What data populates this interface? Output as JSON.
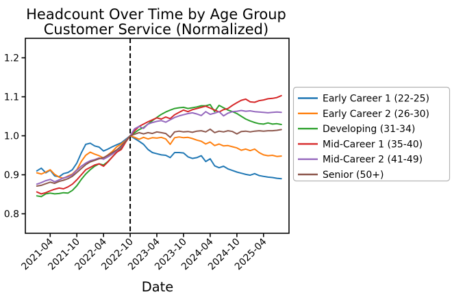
{
  "figure": {
    "title_line1": "Headcount Over Time by Age Group",
    "title_line2": "Customer Service (Normalized)"
  },
  "chart_data": {
    "type": "line",
    "title": "Headcount Over Time by Age Group",
    "subtitle": "Customer Service (Normalized)",
    "xlabel": "Date",
    "ylabel": "",
    "x_frequency": "monthly",
    "x_start": "2021-01",
    "x_end": "2025-08",
    "ylim": [
      0.75,
      1.25
    ],
    "grid": false,
    "legend_position": "outside-right",
    "background_color": "#ffffff",
    "axis_color": "#000000",
    "xtick_labels": [
      "2021-04",
      "2021-10",
      "2022-04",
      "2022-10",
      "2023-04",
      "2023-10",
      "2024-04",
      "2024-10",
      "2025-04"
    ],
    "xtick_month_indices": [
      3,
      9,
      15,
      21,
      27,
      33,
      39,
      45,
      51
    ],
    "ytick_labels": [
      "0.8",
      "0.9",
      "1.0",
      "1.1",
      "1.2"
    ],
    "ytick_values": [
      0.8,
      0.9,
      1.0,
      1.1,
      1.2
    ],
    "normalization_line": {
      "month_index": 21,
      "date": "2022-10",
      "style": "dashed",
      "color": "#000000"
    },
    "series": [
      {
        "name": "Early Career 1 (22-25)",
        "color": "#1f77b4",
        "values": [
          0.91,
          0.917,
          0.905,
          0.912,
          0.897,
          0.895,
          0.903,
          0.906,
          0.913,
          0.93,
          0.956,
          0.978,
          0.981,
          0.974,
          0.971,
          0.961,
          0.966,
          0.972,
          0.977,
          0.982,
          0.991,
          1.0,
          0.993,
          0.986,
          0.978,
          0.965,
          0.957,
          0.954,
          0.951,
          0.95,
          0.944,
          0.957,
          0.957,
          0.956,
          0.946,
          0.942,
          0.944,
          0.949,
          0.934,
          0.941,
          0.923,
          0.918,
          0.922,
          0.915,
          0.911,
          0.907,
          0.904,
          0.901,
          0.899,
          0.903,
          0.898,
          0.896,
          0.894,
          0.893,
          0.891,
          0.89
        ]
      },
      {
        "name": "Early Career 2 (26-30)",
        "color": "#ff7f0e",
        "values": [
          0.905,
          0.902,
          0.907,
          0.913,
          0.901,
          0.894,
          0.891,
          0.897,
          0.902,
          0.913,
          0.934,
          0.95,
          0.958,
          0.953,
          0.949,
          0.943,
          0.951,
          0.96,
          0.972,
          0.979,
          0.988,
          1.0,
          0.996,
          0.991,
          0.996,
          0.992,
          0.995,
          0.994,
          0.996,
          0.992,
          0.978,
          0.995,
          0.997,
          0.995,
          0.996,
          0.993,
          0.989,
          0.986,
          0.979,
          0.984,
          0.975,
          0.979,
          0.974,
          0.975,
          0.972,
          0.969,
          0.963,
          0.966,
          0.962,
          0.966,
          0.957,
          0.951,
          0.949,
          0.95,
          0.947,
          0.948
        ]
      },
      {
        "name": "Developing (31-34)",
        "color": "#2ca02c",
        "values": [
          0.846,
          0.844,
          0.851,
          0.853,
          0.851,
          0.852,
          0.854,
          0.853,
          0.86,
          0.872,
          0.888,
          0.902,
          0.913,
          0.922,
          0.928,
          0.925,
          0.934,
          0.946,
          0.958,
          0.968,
          0.985,
          1.0,
          1.008,
          1.016,
          1.021,
          1.03,
          1.039,
          1.047,
          1.055,
          1.061,
          1.066,
          1.07,
          1.072,
          1.073,
          1.07,
          1.072,
          1.074,
          1.077,
          1.077,
          1.08,
          1.062,
          1.078,
          1.072,
          1.066,
          1.062,
          1.057,
          1.05,
          1.043,
          1.038,
          1.034,
          1.031,
          1.03,
          1.033,
          1.03,
          1.031,
          1.029
        ]
      },
      {
        "name": "Mid-Career 1 (35-40)",
        "color": "#d62728",
        "values": [
          0.856,
          0.851,
          0.854,
          0.859,
          0.863,
          0.866,
          0.864,
          0.869,
          0.876,
          0.887,
          0.9,
          0.913,
          0.919,
          0.925,
          0.928,
          0.922,
          0.933,
          0.946,
          0.958,
          0.965,
          0.984,
          1.0,
          1.013,
          1.024,
          1.03,
          1.036,
          1.041,
          1.046,
          1.043,
          1.048,
          1.044,
          1.054,
          1.06,
          1.066,
          1.062,
          1.067,
          1.07,
          1.073,
          1.076,
          1.071,
          1.066,
          1.061,
          1.067,
          1.07,
          1.078,
          1.085,
          1.091,
          1.094,
          1.087,
          1.086,
          1.09,
          1.092,
          1.095,
          1.096,
          1.098,
          1.103
        ]
      },
      {
        "name": "Mid-Career 2 (41-49)",
        "color": "#9467bd",
        "values": [
          0.876,
          0.88,
          0.885,
          0.888,
          0.882,
          0.887,
          0.892,
          0.895,
          0.9,
          0.912,
          0.922,
          0.93,
          0.936,
          0.939,
          0.943,
          0.94,
          0.946,
          0.953,
          0.962,
          0.972,
          0.987,
          1.0,
          1.018,
          1.024,
          1.019,
          1.03,
          1.034,
          1.037,
          1.039,
          1.035,
          1.041,
          1.047,
          1.051,
          1.054,
          1.057,
          1.059,
          1.056,
          1.052,
          1.062,
          1.055,
          1.058,
          1.062,
          1.051,
          1.058,
          1.062,
          1.063,
          1.065,
          1.063,
          1.064,
          1.062,
          1.061,
          1.06,
          1.059,
          1.06,
          1.061,
          1.06
        ]
      },
      {
        "name": "Senior (50+)",
        "color": "#8c564b",
        "values": [
          0.871,
          0.873,
          0.877,
          0.881,
          0.878,
          0.883,
          0.886,
          0.89,
          0.896,
          0.906,
          0.916,
          0.926,
          0.933,
          0.937,
          0.941,
          0.944,
          0.95,
          0.957,
          0.964,
          0.974,
          0.986,
          1.0,
          1.004,
          1.008,
          1.005,
          1.008,
          1.006,
          1.01,
          1.008,
          1.006,
          0.996,
          1.01,
          1.012,
          1.01,
          1.011,
          1.009,
          1.012,
          1.013,
          1.01,
          1.017,
          1.008,
          1.012,
          1.01,
          1.013,
          1.011,
          1.005,
          1.011,
          1.012,
          1.01,
          1.012,
          1.013,
          1.012,
          1.013,
          1.013,
          1.014,
          1.016
        ]
      }
    ]
  }
}
